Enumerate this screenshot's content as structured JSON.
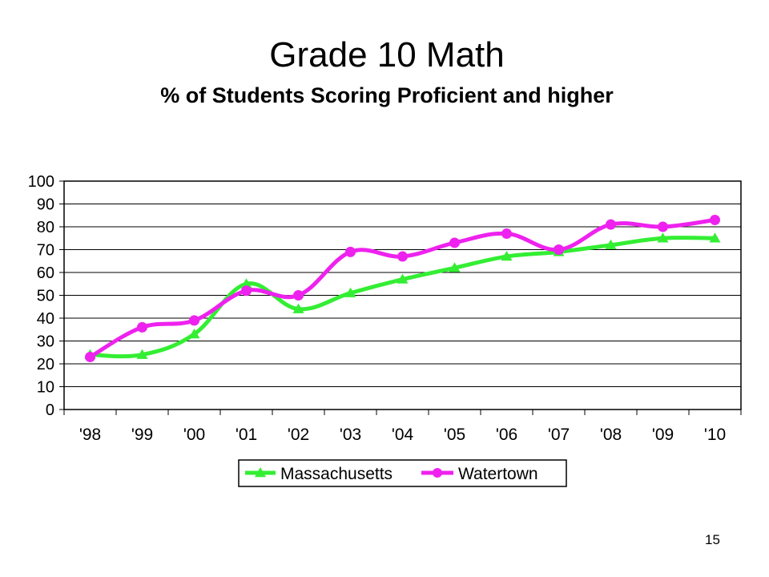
{
  "slide": {
    "title": "Grade 10 Math",
    "subtitle": "% of Students Scoring Proficient and higher",
    "number": "15"
  },
  "chart_data": {
    "type": "line",
    "categories": [
      "'98",
      "'99",
      "'00",
      "'01",
      "'02",
      "'03",
      "'04",
      "'05",
      "'06",
      "'07",
      "'08",
      "'09",
      "'10"
    ],
    "series": [
      {
        "name": "Massachusetts",
        "values": [
          24,
          24,
          33,
          55,
          44,
          51,
          57,
          62,
          67,
          69,
          72,
          75,
          75
        ],
        "color": "#33ee33",
        "marker": "triangle"
      },
      {
        "name": "Watertown",
        "values": [
          23,
          36,
          39,
          52,
          50,
          69,
          67,
          73,
          77,
          70,
          81,
          80,
          83
        ],
        "color": "#ee22ee",
        "marker": "circle"
      }
    ],
    "yticks": [
      0,
      10,
      20,
      30,
      40,
      50,
      60,
      70,
      80,
      90,
      100
    ],
    "ylim": [
      0,
      100
    ],
    "grid": true,
    "legend_position": "bottom"
  }
}
